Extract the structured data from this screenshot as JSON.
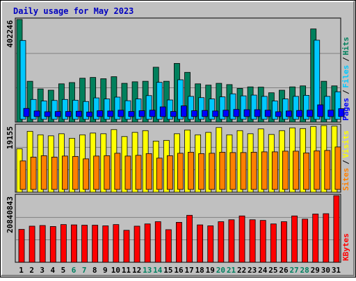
{
  "chart_data": {
    "type": "bar",
    "title": "Daily usage for May 2023",
    "categories": [
      "1",
      "2",
      "3",
      "4",
      "5",
      "6",
      "7",
      "8",
      "9",
      "10",
      "11",
      "12",
      "13",
      "14",
      "15",
      "16",
      "17",
      "18",
      "19",
      "20",
      "21",
      "22",
      "23",
      "24",
      "25",
      "26",
      "27",
      "28",
      "29",
      "30",
      "31"
    ],
    "weekend_days": [
      "6",
      "7",
      "13",
      "14",
      "20",
      "21",
      "27",
      "28"
    ],
    "panels": [
      {
        "id": "pages-files-hits",
        "ymax_label": "402246",
        "ymax": 402246,
        "legend": [
          "Pages",
          "Files",
          "Hits"
        ],
        "series": [
          {
            "name": "Hits",
            "color": "#00805c",
            "values": [
              402246,
              160000,
              130000,
              125000,
              150000,
              155000,
              172000,
              175000,
              170000,
              178000,
              152000,
              158000,
              160000,
              215000,
              160000,
              230000,
              195000,
              150000,
              145000,
              152000,
              147000,
              132000,
              138000,
              137000,
              115000,
              125000,
              138000,
              142000,
              365000,
              160000,
              142000
            ]
          },
          {
            "name": "Files",
            "color": "#00c8ff",
            "values": [
              309000,
              78000,
              72000,
              74000,
              78000,
              75000,
              70000,
              84000,
              80000,
              87000,
              73000,
              80000,
              93000,
              145000,
              76000,
              155000,
              90000,
              85000,
              80000,
              88000,
              100000,
              92000,
              95000,
              90000,
              72000,
              80000,
              90000,
              94000,
              310000,
              90000,
              108000
            ]
          },
          {
            "name": "Pages",
            "color": "#0000ff",
            "values": [
              32000,
              22000,
              19000,
              20000,
              20000,
              21000,
              18000,
              23000,
              22000,
              25000,
              20000,
              23000,
              25000,
              38000,
              20000,
              42000,
              23000,
              24000,
              22000,
              25000,
              28000,
              27000,
              27000,
              25000,
              19000,
              22000,
              24000,
              25000,
              46000,
              25000,
              31000
            ]
          }
        ]
      },
      {
        "id": "visits-sites",
        "ymax_label": "19155",
        "ymax": 19155,
        "legend": [
          "Sites",
          "Visits"
        ],
        "series": [
          {
            "name": "Visits",
            "color": "#ffff00",
            "values": [
              12500,
              17500,
              16500,
              16200,
              16800,
              15500,
              16500,
              17000,
              16800,
              18000,
              16000,
              17200,
              17700,
              14700,
              14900,
              16800,
              17900,
              16500,
              17200,
              18600,
              16500,
              17700,
              16800,
              18200,
              16600,
              17700,
              18500,
              18300,
              18900,
              19155,
              19000
            ]
          },
          {
            "name": "Sites",
            "color": "#ff8000",
            "values": [
              8200,
              9300,
              9700,
              9300,
              9600,
              9500,
              8800,
              9600,
              9700,
              10400,
              9600,
              9800,
              10300,
              9000,
              9700,
              10400,
              10700,
              10300,
              10400,
              10700,
              10600,
              10600,
              10700,
              10800,
              10800,
              11000,
              11000,
              10500,
              11100,
              11200,
              12200
            ]
          }
        ]
      },
      {
        "id": "kbytes",
        "ymax_label": "20840843",
        "ymax": 20840843,
        "legend": [
          "KBytes"
        ],
        "series": [
          {
            "name": "KBytes",
            "color": "#ff0000",
            "values": [
              10300000,
              11300000,
              11500000,
              11200000,
              11800000,
              11700000,
              11600000,
              11600000,
              11400000,
              11800000,
              10000000,
              11300000,
              12000000,
              12700000,
              10200000,
              12500000,
              14700000,
              11700000,
              11400000,
              12700000,
              13300000,
              14500000,
              13300000,
              13100000,
              12000000,
              12700000,
              14500000,
              13500000,
              15100000,
              15200000,
              20840843
            ]
          }
        ]
      }
    ]
  }
}
